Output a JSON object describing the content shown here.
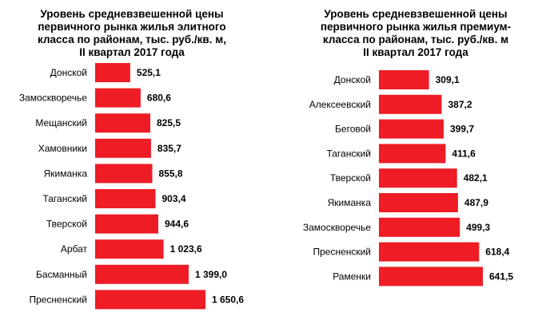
{
  "chart_data": [
    {
      "type": "bar",
      "orientation": "horizontal",
      "title": "Уровень средневзвешенной цены\nпервичного рынка жилья элитного\nкласса  по районам, тыс. руб./кв. м,\nII квартал 2017 года",
      "categories": [
        "Донской",
        "Замоскворечье",
        "Мещанский",
        "Хамовники",
        "Якиманка",
        "Таганский",
        "Тверской",
        "Арбат",
        "Басманный",
        "Пресненский"
      ],
      "values": [
        525.1,
        680.6,
        825.5,
        835.7,
        855.8,
        903.4,
        944.6,
        1023.6,
        1399.0,
        1650.6
      ],
      "value_labels": [
        "525,1",
        "680,6",
        "825,5",
        "835,7",
        "855,8",
        "903,4",
        "944,6",
        "1 023,6",
        "1 399,0",
        "1 650,6"
      ],
      "xlim": [
        0,
        1650.6
      ],
      "bar_color": "#ee1c25",
      "grid": false
    },
    {
      "type": "bar",
      "orientation": "horizontal",
      "title": "Уровень средневзвешенной цены\nпервичного рынка жилья премиум-\nкласса  по районам, тыс. руб./кв. м\nII квартал 2017 года",
      "categories": [
        "Донской",
        "Алексеевский",
        "Беговой",
        "Таганский",
        "Тверской",
        "Якиманка",
        "Замоскворечье",
        "Пресненский",
        "Раменки"
      ],
      "values": [
        309.1,
        387.2,
        399.7,
        411.6,
        482.1,
        487.9,
        499.3,
        618.4,
        641.5
      ],
      "value_labels": [
        "309,1",
        "387,2",
        "399,7",
        "411,6",
        "482,1",
        "487,9",
        "499,3",
        "618,4",
        "641,5"
      ],
      "xlim": [
        0,
        641.5
      ],
      "bar_color": "#ee1c25",
      "grid": false
    }
  ]
}
